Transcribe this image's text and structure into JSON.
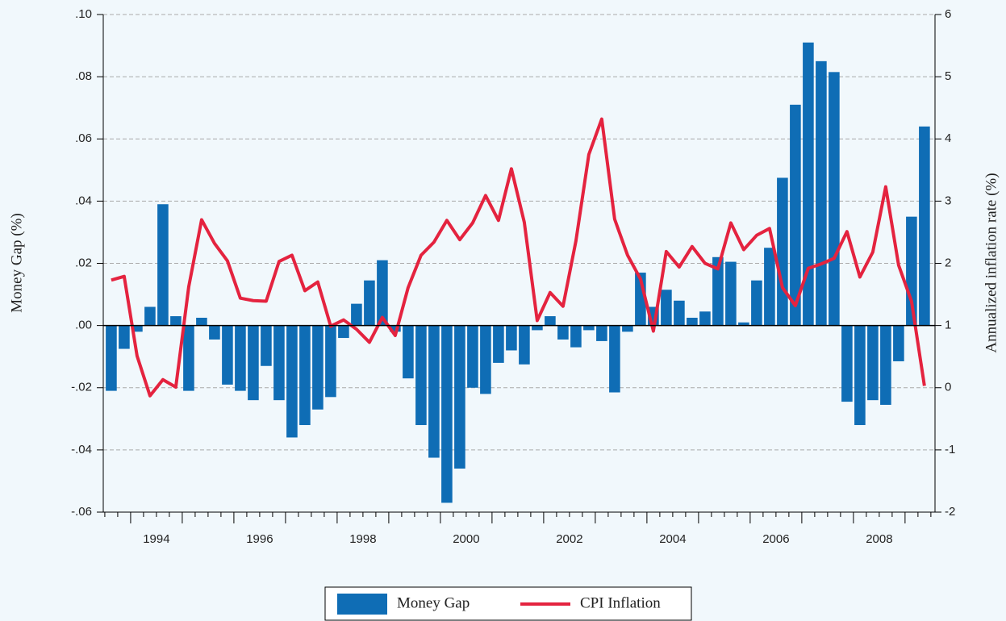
{
  "chart_data": {
    "type": "bar_line",
    "y_label": "Money Gap (%)",
    "y2_label": "Annualized inflation rate (%)",
    "x": [
      1993.5,
      1993.75,
      1994,
      1994.25,
      1994.5,
      1994.75,
      1995,
      1995.25,
      1995.5,
      1995.75,
      1996,
      1996.25,
      1996.5,
      1996.75,
      1997,
      1997.25,
      1997.5,
      1997.75,
      1998,
      1998.25,
      1998.5,
      1998.75,
      1999,
      1999.25,
      1999.5,
      1999.75,
      2000,
      2000.25,
      2000.5,
      2000.75,
      2001,
      2001.25,
      2001.5,
      2001.75,
      2002,
      2002.25,
      2002.5,
      2002.75,
      2003,
      2003.25,
      2003.5,
      2003.75,
      2004,
      2004.25,
      2004.5,
      2004.75,
      2005,
      2005.25,
      2005.5,
      2005.75,
      2006,
      2006.25,
      2006.5,
      2006.75,
      2007,
      2007.25,
      2007.5,
      2007.75,
      2008,
      2008.25,
      2008.5,
      2008.75,
      2009,
      2009.25
    ],
    "series": [
      {
        "name": "Money Gap",
        "color": "#0f6db5",
        "kind": "bar",
        "values": [
          -0.021,
          -0.0075,
          -0.002,
          0.006,
          0.039,
          0.003,
          -0.021,
          0.0025,
          -0.0045,
          -0.019,
          -0.021,
          -0.024,
          -0.013,
          -0.024,
          -0.036,
          -0.032,
          -0.027,
          -0.023,
          -0.004,
          0.007,
          0.0145,
          0.021,
          -0.002,
          -0.017,
          -0.032,
          -0.0425,
          -0.057,
          -0.046,
          -0.02,
          -0.022,
          -0.012,
          -0.008,
          -0.0125,
          -0.0015,
          0.003,
          -0.0045,
          -0.007,
          -0.0015,
          -0.005,
          -0.0215,
          -0.002,
          0.017,
          0.006,
          0.0115,
          0.008,
          0.0025,
          0.0045,
          0.022,
          0.0205,
          0.001,
          0.0145,
          0.025,
          0.0475,
          0.071,
          0.091,
          0.085,
          0.0815,
          -0.0245,
          -0.032,
          -0.024,
          -0.0255,
          -0.0115,
          0.035,
          0.064
        ]
      },
      {
        "name": "CPI Inflation",
        "color": "#e4233f",
        "kind": "line",
        "axis": "y2",
        "values": [
          1.73,
          1.79,
          0.51,
          -0.13,
          0.13,
          0.01,
          1.62,
          2.7,
          2.32,
          2.04,
          1.44,
          1.4,
          1.39,
          2.03,
          2.13,
          1.56,
          1.7,
          0.99,
          1.09,
          0.94,
          0.73,
          1.13,
          0.84,
          1.61,
          2.13,
          2.34,
          2.69,
          2.38,
          2.65,
          3.09,
          2.69,
          3.52,
          2.66,
          1.08,
          1.53,
          1.31,
          2.36,
          3.75,
          4.32,
          2.71,
          2.13,
          1.75,
          0.91,
          2.19,
          1.94,
          2.27,
          2.0,
          1.91,
          2.65,
          2.22,
          2.45,
          2.56,
          1.61,
          1.32,
          1.92,
          1.99,
          2.08,
          2.51,
          1.78,
          2.18,
          3.23,
          1.97,
          1.39,
          0.03
        ]
      }
    ],
    "xlim": [
      1993.47,
      2009.58
    ],
    "xticks": [
      1994,
      1996,
      1998,
      2000,
      2002,
      2004,
      2006,
      2008
    ],
    "ylim": [
      -0.06,
      0.1
    ],
    "yticks": [
      {
        "value": 0.1,
        "label": ".10"
      },
      {
        "value": 0.08,
        "label": ".08"
      },
      {
        "value": 0.06,
        "label": ".06"
      },
      {
        "value": 0.04,
        "label": ".04"
      },
      {
        "value": 0.02,
        "label": ".02"
      },
      {
        "value": 0,
        "label": ".00"
      },
      {
        "value": -0.02,
        "label": "-.02"
      },
      {
        "value": -0.04,
        "label": "-.04"
      },
      {
        "value": -0.06,
        "label": "-.06"
      }
    ],
    "y2lim": [
      -2,
      6
    ],
    "y2ticks": [
      6,
      5,
      4,
      3,
      2,
      1,
      0,
      -1,
      -2
    ],
    "grid": true,
    "legend": "bottom"
  }
}
